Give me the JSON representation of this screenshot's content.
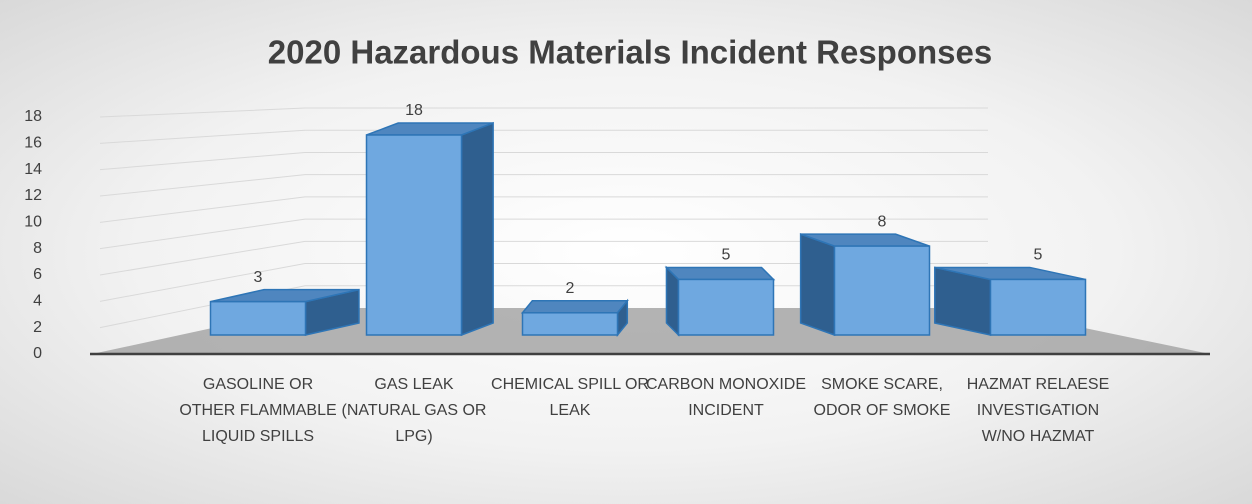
{
  "chart_data": {
    "type": "bar3d",
    "title": "2020 Hazardous Materials Incident Responses",
    "categories": [
      "GASOLINE OR OTHER FLAMMABLE LIQUID SPILLS",
      "GAS LEAK (NATURAL GAS OR LPG)",
      "CHEMICAL SPILL OR LEAK",
      "CARBON MONOXIDE INCIDENT",
      "SMOKE SCARE, ODOR OF SMOKE",
      "HAZMAT RELAESE INVESTIGATION W/NO HAZMAT"
    ],
    "values": [
      3,
      18,
      2,
      5,
      8,
      5
    ],
    "color": "#6fa8e0",
    "ylim": [
      0,
      18
    ],
    "yticks": [
      0,
      2,
      4,
      6,
      8,
      10,
      12,
      14,
      16,
      18
    ],
    "grid": true
  }
}
